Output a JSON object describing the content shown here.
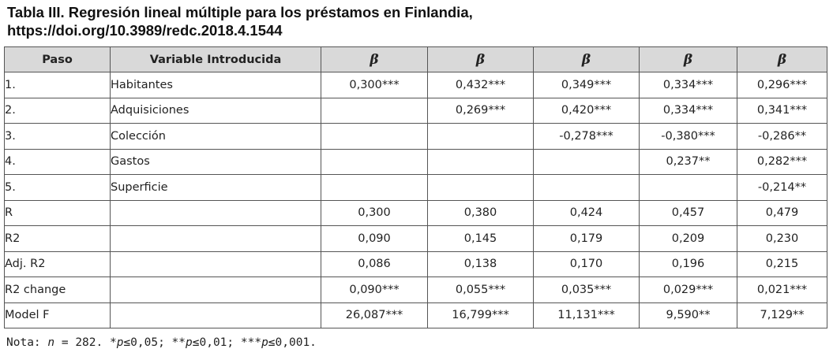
{
  "title": {
    "line1": "Tabla III. Regresión lineal múltiple para los préstamos en Finlandia,",
    "line2": "https://doi.org/10.3989/redc.2018.4.1544"
  },
  "table": {
    "headers": [
      "Paso",
      "Variable Introducida",
      "β",
      "β",
      "β",
      "β",
      "β"
    ],
    "rows": [
      {
        "paso": "1.",
        "variable": "Habitantes",
        "values": [
          "0,300***",
          "0,432***",
          "0,349***",
          "0,334***",
          "0,296***"
        ]
      },
      {
        "paso": "2.",
        "variable": "Adquisiciones",
        "values": [
          "",
          "0,269***",
          "0,420***",
          "0,334***",
          "0,341***"
        ]
      },
      {
        "paso": "3.",
        "variable": "Colección",
        "values": [
          "",
          "",
          "-0,278***",
          "-0,380***",
          "-0,286**"
        ]
      },
      {
        "paso": "4.",
        "variable": "Gastos",
        "values": [
          "",
          "",
          "",
          "0,237**",
          "0,282***"
        ]
      },
      {
        "paso": "5.",
        "variable": "Superficie",
        "values": [
          "",
          "",
          "",
          "",
          "-0,214**"
        ]
      },
      {
        "paso": "R",
        "variable": "",
        "values": [
          "0,300",
          "0,380",
          "0,424",
          "0,457",
          "0,479"
        ]
      },
      {
        "paso": "R2",
        "variable": "",
        "values": [
          "0,090",
          "0,145",
          "0,179",
          "0,209",
          "0,230"
        ]
      },
      {
        "paso": "Adj. R2",
        "variable": "",
        "values": [
          "0,086",
          "0,138",
          "0,170",
          "0,196",
          "0,215"
        ]
      },
      {
        "paso": "R2 change",
        "variable": "",
        "values": [
          "0,090***",
          "0,055***",
          "0,035***",
          "0,029***",
          "0,021***"
        ]
      },
      {
        "paso": " Model F",
        "variable": "",
        "values": [
          "26,087***",
          "16,799***",
          "11,131***",
          "9,590**",
          "7,129**"
        ]
      }
    ]
  },
  "note": {
    "prefix": "Nota: ",
    "n_symbol": "n",
    "n_text": " = 282. *",
    "p1": "p",
    "t1": "≤0,05; **",
    "p2": "p",
    "t2": "≤0,01; ***",
    "p3": "p",
    "t3": "≤0,001."
  }
}
